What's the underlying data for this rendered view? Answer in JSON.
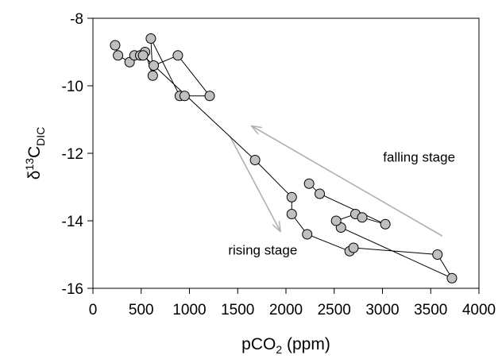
{
  "chart_data": {
    "type": "scatter",
    "title": "",
    "xlabel": "pCO",
    "xlabel_sub": "2",
    "xlabel_unit": " (ppm)",
    "ylabel": "δ",
    "ylabel_sup": "13",
    "ylabel_main": "C",
    "ylabel_sub": "DIC",
    "xlim": [
      0,
      4000
    ],
    "ylim": [
      -16,
      -8
    ],
    "xticks": [
      0,
      500,
      1000,
      1500,
      2000,
      2500,
      3000,
      3500,
      4000
    ],
    "yticks": [
      -16,
      -14,
      -12,
      -10,
      -8
    ],
    "grid": false,
    "line_color": "#000000",
    "marker_fill": "#c0c0c0",
    "marker_stroke": "#000000",
    "arrow_color": "#b0b0b0",
    "series": [
      {
        "x": [
          230,
          260,
          380,
          430,
          490,
          540,
          620,
          600,
          900,
          950,
          1210,
          880,
          630,
          520,
          1680,
          2060,
          2060,
          2220,
          2660,
          2700,
          3570,
          3720,
          2570,
          2520,
          2720,
          2790,
          3030,
          2350,
          2240
        ],
        "y": [
          -8.8,
          -9.1,
          -9.3,
          -9.1,
          -9.1,
          -9.0,
          -9.7,
          -8.6,
          -10.3,
          -10.3,
          -10.3,
          -9.1,
          -9.4,
          -9.1,
          -12.2,
          -13.3,
          -13.8,
          -14.4,
          -14.9,
          -14.8,
          -15.0,
          -15.7,
          -14.2,
          -14.0,
          -13.8,
          -13.9,
          -14.1,
          -13.2,
          -12.9
        ]
      }
    ],
    "annotations": [
      {
        "text": "falling stage",
        "x": 3380,
        "y": -12.25
      },
      {
        "text": "rising stage",
        "x": 1760,
        "y": -15.0
      }
    ],
    "arrows": [
      {
        "label": "falling stage",
        "from": [
          3620,
          -14.45
        ],
        "to": [
          1650,
          -11.2
        ]
      },
      {
        "label": "rising stage",
        "from": [
          1420,
          -11.5
        ],
        "to": [
          1940,
          -14.3
        ]
      }
    ]
  }
}
